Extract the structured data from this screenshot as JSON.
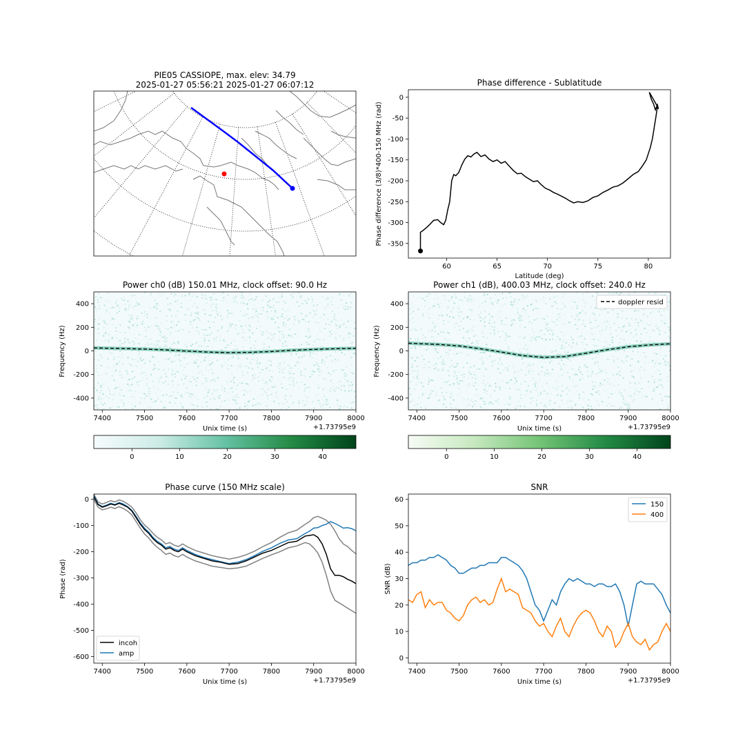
{
  "chart_data": [
    {
      "id": "map",
      "type": "map",
      "title": "PIE05 CASSIOPE, max. elev: 34.79",
      "subtitle": "2025-01-27 05:56:21 2025-01-27 06:07:12",
      "track_color": "#0000ff",
      "station_color": "#ff0000"
    },
    {
      "id": "phase_diff",
      "type": "line",
      "title": "Phase difference - Sublatitude",
      "xlabel": "Latitude (deg)",
      "ylabel": "Phase difference (3/8)*400-150 MHz (rad)",
      "xlim": [
        56.2,
        82.2
      ],
      "ylim": [
        -385,
        18
      ],
      "xticks": [
        60,
        65,
        70,
        75,
        80
      ],
      "yticks": [
        0,
        -50,
        -100,
        -150,
        -200,
        -250,
        -300,
        -350
      ],
      "color": "#000000",
      "start_marker": [
        57.4,
        -368
      ],
      "x": [
        57.4,
        57.4,
        57.6,
        58.0,
        58.3,
        58.7,
        59.1,
        59.4,
        59.7,
        59.9,
        60.1,
        60.3,
        60.5,
        60.7,
        60.9,
        61.2,
        61.5,
        61.8,
        62.1,
        62.4,
        62.7,
        63.0,
        63.4,
        63.8,
        64.2,
        64.6,
        65.0,
        65.4,
        65.8,
        66.2,
        66.6,
        67.0,
        67.4,
        67.8,
        68.2,
        68.6,
        69.0,
        69.4,
        69.8,
        70.2,
        70.6,
        71.0,
        71.4,
        71.8,
        72.2,
        72.6,
        73.0,
        73.5,
        74.0,
        74.5,
        75.0,
        75.5,
        76.0,
        76.5,
        77.0,
        77.5,
        78.0,
        78.5,
        79.0,
        79.4,
        79.8,
        80.2,
        80.4,
        80.5,
        80.6,
        80.7,
        80.8,
        80.9,
        80.1,
        80.3,
        80.5,
        80.7,
        80.9,
        81.0
      ],
      "y": [
        -368,
        -323,
        -320,
        -312,
        -305,
        -295,
        -293,
        -300,
        -305,
        -295,
        -270,
        -250,
        -200,
        -185,
        -188,
        -180,
        -162,
        -148,
        -140,
        -143,
        -136,
        -132,
        -142,
        -138,
        -148,
        -154,
        -150,
        -158,
        -154,
        -165,
        -175,
        -183,
        -182,
        -190,
        -196,
        -202,
        -200,
        -210,
        -218,
        -222,
        -228,
        -232,
        -237,
        -242,
        -248,
        -253,
        -250,
        -252,
        -248,
        -240,
        -236,
        -228,
        -222,
        -215,
        -212,
        -205,
        -195,
        -185,
        -178,
        -165,
        -150,
        -120,
        -100,
        -85,
        -70,
        -55,
        -40,
        -22,
        12,
        -5,
        -15,
        -30,
        -18,
        -28
      ]
    },
    {
      "id": "power_ch0",
      "type": "heatmap",
      "title": "Power ch0 (dB) 150.01 MHz, clock offset: 90.0 Hz",
      "xlabel": "Unix time (s)",
      "ylabel": "Frequency (Hz)",
      "offset_label": "+1.73795e9",
      "xlim": [
        7380,
        8000
      ],
      "ylim": [
        -500,
        500
      ],
      "xticks": [
        7400,
        7500,
        7600,
        7700,
        7800,
        7900,
        8000
      ],
      "yticks": [
        400,
        200,
        0,
        -200,
        -400
      ],
      "track_x": [
        7380,
        7450,
        7500,
        7550,
        7600,
        7650,
        7700,
        7750,
        7800,
        7850,
        7900,
        7950,
        8000
      ],
      "track_y": [
        25,
        20,
        15,
        8,
        -2,
        -10,
        -15,
        -12,
        -5,
        5,
        12,
        18,
        22
      ],
      "colorbar_ticks": [
        0,
        10,
        20,
        30,
        40
      ],
      "colorbar_range": [
        -8,
        47
      ]
    },
    {
      "id": "power_ch1",
      "type": "heatmap",
      "title": "Power ch1 (dB), 400.03 MHz, clock offset: 240.0 Hz",
      "xlabel": "Unix time (s)",
      "ylabel": "Frequency (Hz)",
      "offset_label": "+1.73795e9",
      "xlim": [
        7380,
        8000
      ],
      "ylim": [
        -500,
        500
      ],
      "xticks": [
        7400,
        7500,
        7600,
        7700,
        7800,
        7900,
        8000
      ],
      "yticks": [
        400,
        200,
        0,
        -200,
        -400
      ],
      "legend": "doppler resid",
      "legend_position": "top-right",
      "track_x": [
        7380,
        7450,
        7500,
        7550,
        7600,
        7650,
        7700,
        7750,
        7800,
        7850,
        7900,
        7950,
        8000
      ],
      "track_y": [
        65,
        55,
        42,
        18,
        -10,
        -40,
        -55,
        -48,
        -20,
        10,
        35,
        50,
        60
      ],
      "colorbar_ticks": [
        0,
        10,
        20,
        30,
        40
      ],
      "colorbar_range": [
        -8,
        47
      ]
    },
    {
      "id": "phase_curve",
      "type": "line",
      "title": "Phase curve (150 MHz scale)",
      "xlabel": "Unix time (s)",
      "ylabel": "Phase (rad)",
      "offset_label": "+1.73795e9",
      "xlim": [
        7380,
        8000
      ],
      "ylim": [
        -625,
        20
      ],
      "xticks": [
        7400,
        7500,
        7600,
        7700,
        7800,
        7900,
        8000
      ],
      "yticks": [
        0,
        -100,
        -200,
        -300,
        -400,
        -500,
        -600
      ],
      "legend_position": "lower-left",
      "x": [
        7380,
        7390,
        7400,
        7410,
        7420,
        7430,
        7440,
        7450,
        7460,
        7470,
        7480,
        7490,
        7500,
        7510,
        7520,
        7530,
        7540,
        7550,
        7560,
        7570,
        7580,
        7590,
        7600,
        7620,
        7640,
        7660,
        7680,
        7700,
        7720,
        7740,
        7760,
        7780,
        7800,
        7820,
        7840,
        7860,
        7880,
        7890,
        7900,
        7910,
        7920,
        7930,
        7940,
        7950,
        7960,
        7970,
        7980,
        7990,
        8000
      ],
      "series": [
        {
          "name": "incoh",
          "color": "#000000",
          "values": [
            10,
            -20,
            -30,
            -25,
            -18,
            -22,
            -15,
            -22,
            -30,
            -45,
            -70,
            -95,
            -115,
            -130,
            -150,
            -165,
            -175,
            -190,
            -185,
            -195,
            -200,
            -190,
            -200,
            -215,
            -225,
            -235,
            -240,
            -248,
            -245,
            -235,
            -220,
            -205,
            -195,
            -180,
            -165,
            -160,
            -140,
            -138,
            -135,
            -145,
            -170,
            -210,
            -265,
            -290,
            -290,
            -295,
            -305,
            -312,
            -322
          ]
        },
        {
          "name": "amp",
          "color": "#1f77b4",
          "values": [
            15,
            -18,
            -28,
            -22,
            -15,
            -20,
            -12,
            -18,
            -28,
            -42,
            -65,
            -90,
            -110,
            -125,
            -145,
            -160,
            -170,
            -185,
            -180,
            -190,
            -195,
            -185,
            -195,
            -210,
            -222,
            -230,
            -238,
            -245,
            -240,
            -230,
            -215,
            -198,
            -185,
            -168,
            -155,
            -150,
            -130,
            -122,
            -110,
            -108,
            -100,
            -95,
            -85,
            -92,
            -100,
            -110,
            -108,
            -112,
            -120
          ]
        },
        {
          "name": "",
          "color": "#808080",
          "values": [
            20,
            -10,
            -18,
            -12,
            -5,
            -10,
            -2,
            -8,
            -18,
            -30,
            -52,
            -78,
            -98,
            -112,
            -130,
            -145,
            -155,
            -170,
            -165,
            -175,
            -180,
            -170,
            -180,
            -195,
            -205,
            -215,
            -222,
            -228,
            -222,
            -212,
            -198,
            -180,
            -165,
            -145,
            -128,
            -118,
            -95,
            -85,
            -70,
            -65,
            -72,
            -80,
            -95,
            -120,
            -150,
            -170,
            -180,
            -195,
            -208
          ]
        },
        {
          "name": "",
          "color": "#808080",
          "values": [
            0,
            -30,
            -40,
            -36,
            -30,
            -35,
            -28,
            -35,
            -45,
            -60,
            -85,
            -110,
            -132,
            -148,
            -168,
            -183,
            -195,
            -210,
            -205,
            -215,
            -220,
            -210,
            -220,
            -235,
            -245,
            -255,
            -260,
            -265,
            -262,
            -255,
            -240,
            -225,
            -212,
            -200,
            -185,
            -178,
            -165,
            -170,
            -185,
            -205,
            -240,
            -290,
            -350,
            -385,
            -395,
            -405,
            -415,
            -425,
            -435
          ]
        }
      ]
    },
    {
      "id": "snr",
      "type": "line",
      "title": "SNR",
      "xlabel": "Unix time (s)",
      "ylabel": "SNR (dB)",
      "offset_label": "+1.73795e9",
      "xlim": [
        7380,
        8000
      ],
      "ylim": [
        -2,
        62
      ],
      "xticks": [
        7400,
        7500,
        7600,
        7700,
        7800,
        7900,
        8000
      ],
      "yticks": [
        0,
        10,
        20,
        30,
        40,
        50,
        60
      ],
      "legend_position": "top-right",
      "x": [
        7380,
        7390,
        7400,
        7410,
        7420,
        7430,
        7440,
        7450,
        7460,
        7470,
        7480,
        7490,
        7500,
        7510,
        7520,
        7530,
        7540,
        7550,
        7560,
        7570,
        7580,
        7590,
        7600,
        7610,
        7620,
        7630,
        7640,
        7650,
        7660,
        7670,
        7680,
        7690,
        7700,
        7710,
        7720,
        7730,
        7740,
        7750,
        7760,
        7770,
        7780,
        7790,
        7800,
        7810,
        7820,
        7830,
        7840,
        7850,
        7860,
        7870,
        7880,
        7890,
        7900,
        7910,
        7920,
        7930,
        7940,
        7950,
        7960,
        7970,
        7980,
        7990,
        8000
      ],
      "series": [
        {
          "name": "150",
          "color": "#1f77b4",
          "values": [
            35,
            36,
            36,
            37,
            37,
            38,
            38,
            39,
            38,
            37,
            35,
            34,
            32,
            32,
            33,
            34,
            34,
            35,
            35,
            36,
            36,
            36,
            38,
            38,
            37,
            36,
            35,
            33,
            30,
            25,
            20,
            18,
            14,
            18,
            22,
            20,
            25,
            28,
            30,
            29,
            30,
            29,
            28,
            28,
            27,
            28,
            28,
            27,
            27,
            28,
            25,
            20,
            12,
            20,
            28,
            29,
            28,
            28,
            28,
            26,
            24,
            20,
            17
          ]
        },
        {
          "name": "400",
          "color": "#ff7f0e",
          "values": [
            22,
            21,
            24,
            25,
            19,
            22,
            20,
            21,
            21,
            18,
            17,
            15,
            14,
            16,
            20,
            22,
            23,
            21,
            22,
            20,
            21,
            26,
            30,
            25,
            26,
            25,
            24,
            19,
            18,
            17,
            14,
            12,
            13,
            10,
            8,
            12,
            15,
            10,
            8,
            12,
            15,
            17,
            18,
            17,
            14,
            10,
            8,
            12,
            10,
            4,
            6,
            10,
            13,
            8,
            6,
            5,
            7,
            3,
            5,
            6,
            10,
            13,
            10
          ]
        }
      ]
    }
  ]
}
